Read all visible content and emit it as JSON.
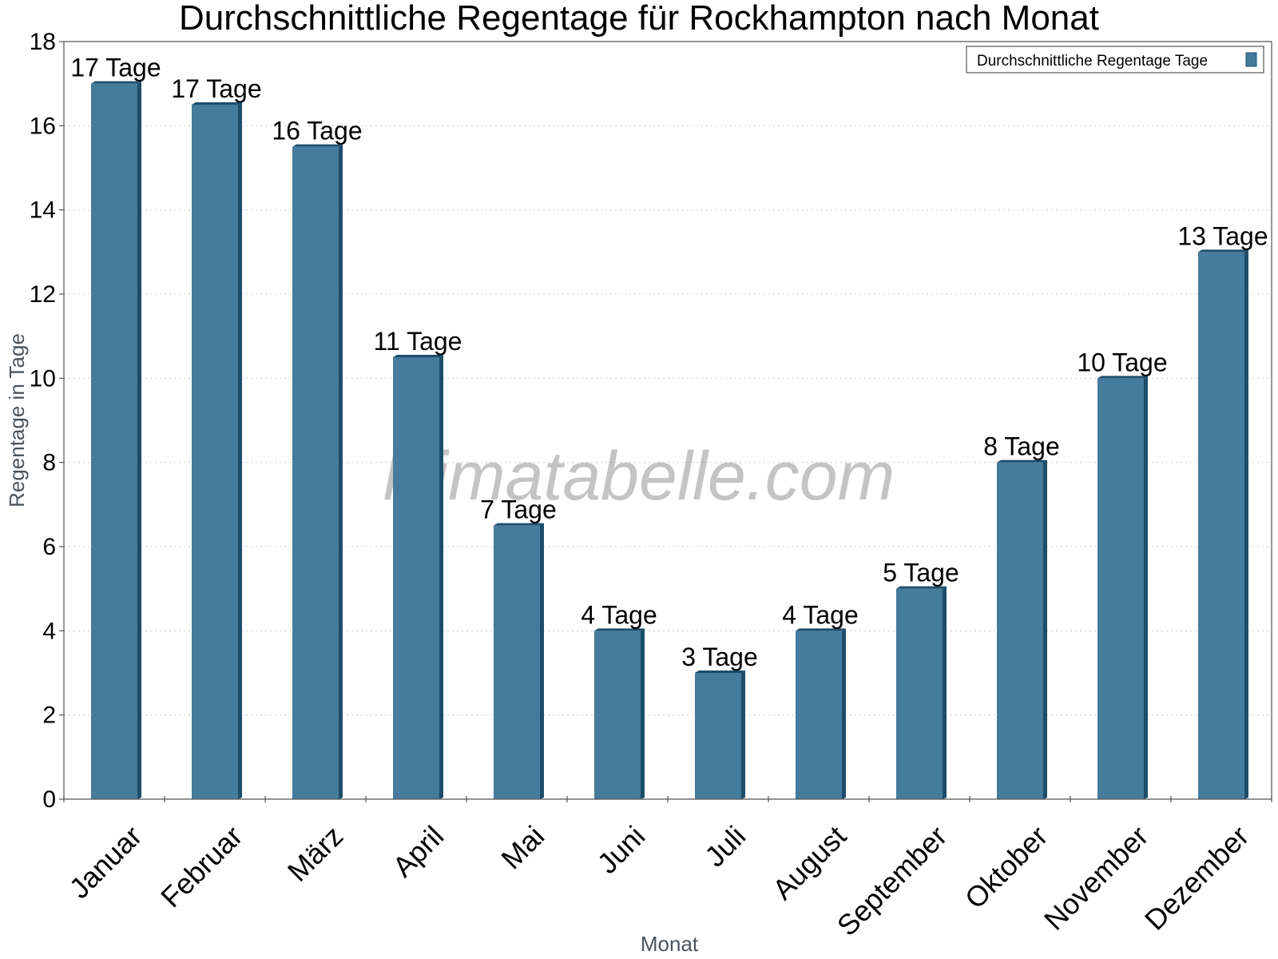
{
  "chart_data": {
    "type": "bar",
    "title": "Durchschnittliche Regentage für Rockhampton nach Monat",
    "xlabel": "Monat",
    "ylabel": "Regentage in Tage",
    "ylim": [
      0,
      18
    ],
    "yticks": [
      0,
      2,
      4,
      6,
      8,
      10,
      12,
      14,
      16,
      18
    ],
    "grid": true,
    "legend_position": "top-right",
    "watermark": "klimatabelle.com",
    "categories": [
      "Januar",
      "Februar",
      "März",
      "April",
      "Mai",
      "Juni",
      "Juli",
      "August",
      "September",
      "Oktober",
      "November",
      "Dezember"
    ],
    "series": [
      {
        "name": "Durchschnittliche Regentage Tage",
        "color": "#457b9d",
        "values": [
          17,
          16.5,
          15.5,
          10.5,
          6.5,
          4,
          3,
          4,
          5,
          8,
          10,
          13
        ],
        "labels": [
          "17 Tage",
          "17 Tage",
          "16 Tage",
          "11 Tage",
          "7 Tage",
          "4 Tage",
          "3 Tage",
          "4 Tage",
          "5 Tage",
          "8 Tage",
          "10 Tage",
          "13 Tage"
        ]
      }
    ]
  }
}
